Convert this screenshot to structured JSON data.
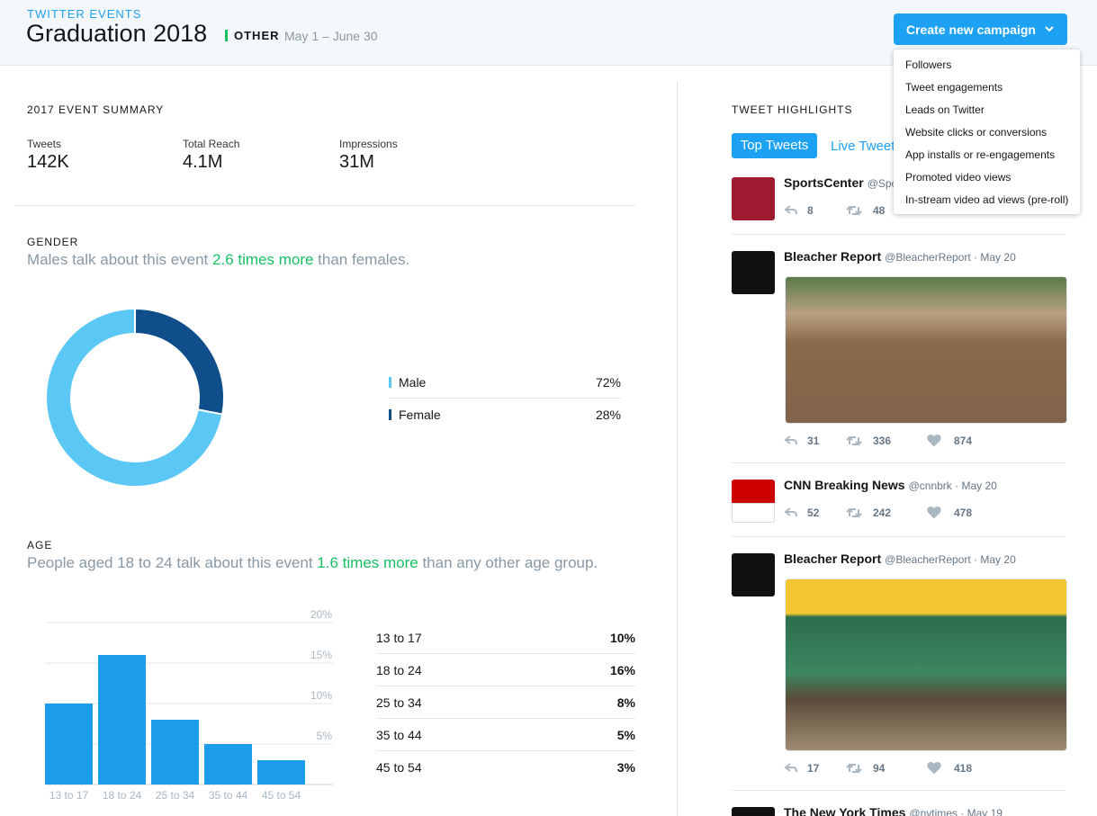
{
  "header": {
    "eyebrow": "TWITTER EVENTS",
    "title": "Graduation 2018",
    "tag": "OTHER",
    "dates": "May 1 – June 30",
    "button": "Create new campaign"
  },
  "dropdown": [
    "Followers",
    "Tweet engagements",
    "Leads on Twitter",
    "Website clicks or conversions",
    "App installs or re-engagements",
    "Promoted video views",
    "In-stream video ad views (pre-roll)"
  ],
  "summary": {
    "title": "2017 EVENT SUMMARY",
    "stats": [
      {
        "label": "Tweets",
        "value": "142K"
      },
      {
        "label": "Total Reach",
        "value": "4.1M"
      },
      {
        "label": "Impressions",
        "value": "31M"
      }
    ]
  },
  "gender": {
    "title": "GENDER",
    "before": "Males talk about this event ",
    "highlight": "2.6 times more",
    "after": " than females."
  },
  "age": {
    "title": "AGE",
    "before": "People aged 18 to 24 talk about this event ",
    "highlight": "1.6 times more",
    "after": " than any other age group."
  },
  "chart_data": [
    {
      "type": "pie",
      "categories": [
        "Male",
        "Female"
      ],
      "values": [
        72,
        28
      ],
      "value_labels": [
        "72%",
        "28%"
      ],
      "colors": [
        "#5bc7f5",
        "#0e4f8b"
      ]
    },
    {
      "type": "bar",
      "categories": [
        "13 to 17",
        "18 to 24",
        "25 to 34",
        "35 to 44",
        "45 to 54"
      ],
      "values": [
        10,
        16,
        8,
        5,
        3
      ],
      "value_labels": [
        "10%",
        "16%",
        "8%",
        "5%",
        "3%"
      ],
      "color": "#1c9deb",
      "ylim": [
        0,
        20
      ],
      "yticks": [
        {
          "value": 5,
          "label": "5%"
        },
        {
          "value": 10,
          "label": "10%"
        },
        {
          "value": 15,
          "label": "15%"
        },
        {
          "value": 20,
          "label": "20%"
        }
      ],
      "grid": true
    }
  ],
  "highlights": {
    "title": "TWEET HIGHLIGHTS",
    "tabs": [
      "Top Tweets",
      "Live Tweets"
    ],
    "tweets": [
      {
        "name": "SportsCenter",
        "handle": "@SportsCenter",
        "replies": "8",
        "retweets": "48"
      },
      {
        "name": "Bleacher Report",
        "handle": "@BleacherReport",
        "date": "May 20",
        "replies": "31",
        "retweets": "336",
        "likes": "874"
      },
      {
        "name": "CNN Breaking News",
        "handle": "@cnnbrk",
        "date": "May 20",
        "replies": "52",
        "retweets": "242",
        "likes": "478"
      },
      {
        "name": "Bleacher Report",
        "handle": "@BleacherReport",
        "date": "May 20",
        "replies": "17",
        "retweets": "94",
        "likes": "418"
      },
      {
        "name": "The New York Times",
        "handle": "@nytimes",
        "date": "May 19"
      }
    ]
  }
}
